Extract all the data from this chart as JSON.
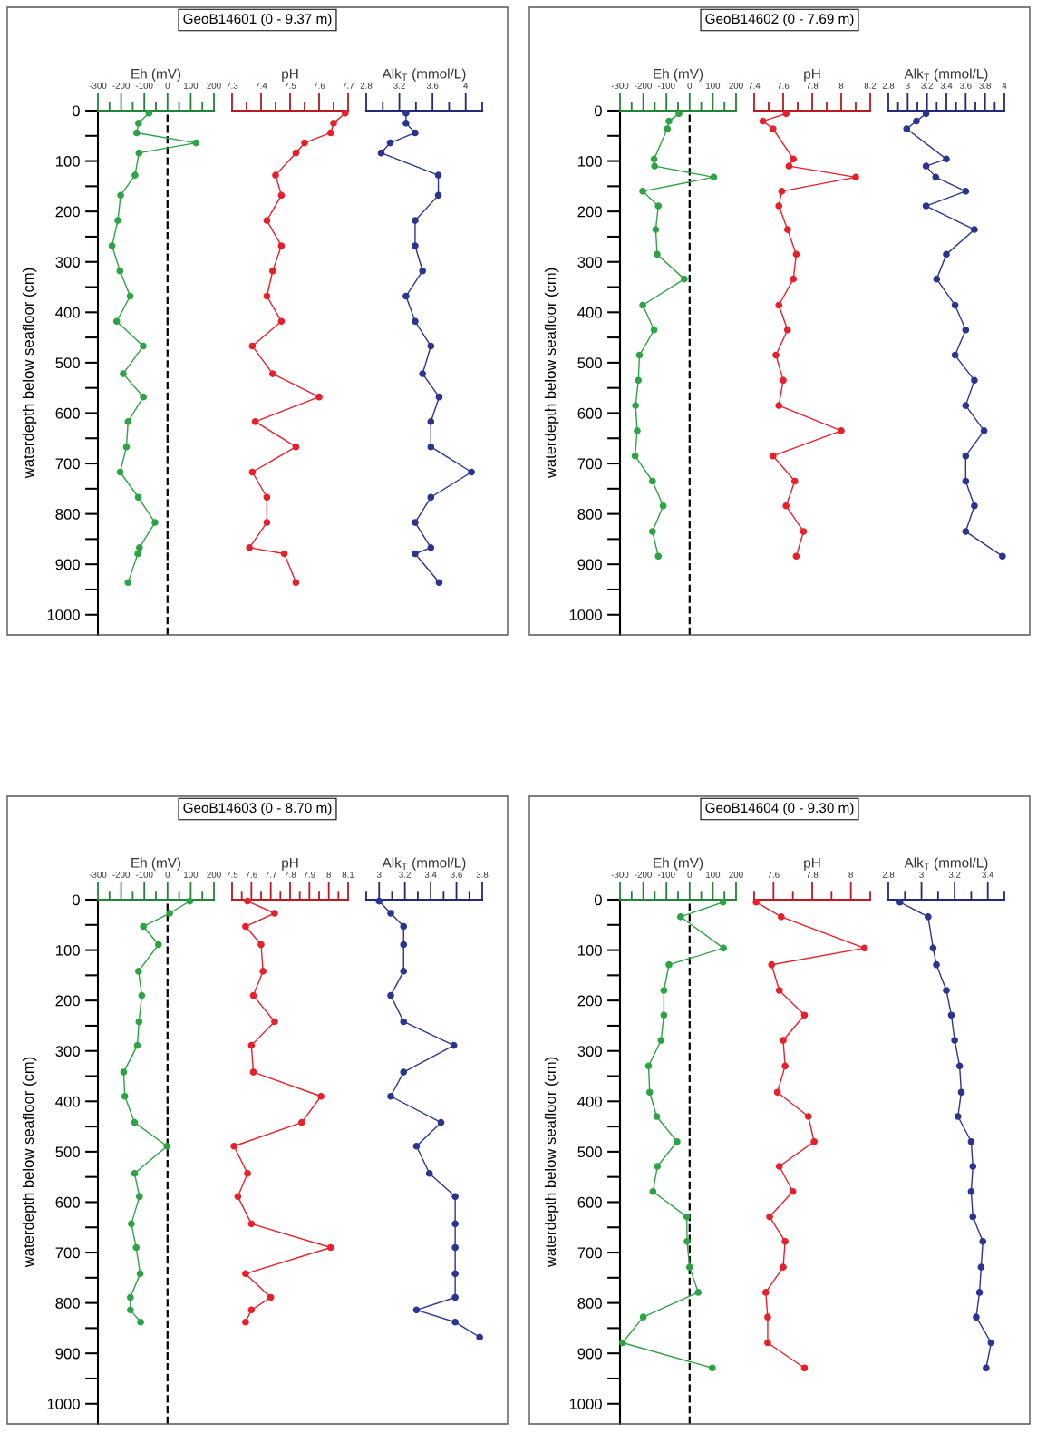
{
  "chart_data": [
    {
      "type": "line",
      "title": "GeoB14601 (0 - 9.37 m)",
      "xlabel": "Eh (mV)",
      "ylabel": "waterdepth below seafloor (cm)",
      "color": "#2ca444",
      "marker": "circle",
      "line_style": "solid",
      "ref_lines": [
        {
          "axis": "x",
          "value": 0,
          "color": "#000000",
          "line_style": "dashed"
        }
      ],
      "x": [
        -80,
        -125,
        -133,
        123,
        -123,
        -140,
        -202,
        -214,
        -239,
        -205,
        -161,
        -219,
        -105,
        -191,
        -104,
        -170,
        -177,
        -204,
        -126,
        -54,
        -121,
        -128,
        -170
      ],
      "values": [
        5,
        25,
        44,
        64,
        84,
        128,
        168,
        218,
        268,
        318,
        368,
        418,
        467,
        522,
        568,
        617,
        667,
        717,
        767,
        817,
        867,
        879,
        936
      ],
      "xlim": [
        -300,
        200
      ],
      "xticks": [
        -300,
        {
          "value": -250,
          "label": null
        },
        -200,
        {
          "value": -150,
          "label": null
        },
        -100,
        {
          "value": -50,
          "label": null
        },
        0,
        {
          "value": 50,
          "label": null
        },
        100,
        {
          "value": 150,
          "label": null
        },
        200
      ],
      "ylim": [
        1040,
        0
      ],
      "yticks": [
        0,
        {
          "value": 50,
          "label": null
        },
        100,
        {
          "value": 150,
          "label": null
        },
        200,
        {
          "value": 250,
          "label": null
        },
        300,
        {
          "value": 350,
          "label": null
        },
        400,
        {
          "value": 450,
          "label": null
        },
        500,
        {
          "value": 550,
          "label": null
        },
        600,
        {
          "value": 650,
          "label": null
        },
        700,
        {
          "value": 750,
          "label": null
        },
        800,
        {
          "value": 850,
          "label": null
        },
        900,
        {
          "value": 950,
          "label": null
        },
        1000
      ]
    },
    {
      "type": "line",
      "xlabel": "pH",
      "color": "#e8202a",
      "marker": "circle",
      "line_style": "solid",
      "tick_labels": "x",
      "x": [
        7.69,
        7.65,
        7.64,
        7.55,
        7.52,
        7.45,
        7.47,
        7.42,
        7.47,
        7.44,
        7.42,
        7.47,
        7.37,
        7.44,
        7.6,
        7.38,
        7.52,
        7.37,
        7.42,
        7.42,
        7.36,
        7.48,
        7.52
      ],
      "values": [
        5,
        25,
        44,
        64,
        84,
        128,
        168,
        218,
        268,
        318,
        368,
        418,
        467,
        522,
        568,
        617,
        667,
        717,
        767,
        817,
        867,
        879,
        936
      ],
      "xlim": [
        7.3,
        7.7
      ],
      "xticks": [
        7.3,
        {
          "value": 7.35,
          "label": null
        },
        7.4,
        {
          "value": 7.45,
          "label": null
        },
        7.5,
        {
          "value": 7.55,
          "label": null
        },
        7.6,
        {
          "value": 7.65,
          "label": null
        },
        7.7
      ],
      "ylim": [
        1040,
        0
      ]
    },
    {
      "type": "line",
      "xlabel": "Alk$_{T}$ (mmol/L)",
      "color": "#2b3590",
      "marker": "circle",
      "line_style": "solid",
      "tick_labels": "x",
      "x": [
        3.28,
        3.28,
        3.39,
        3.09,
        2.98,
        3.67,
        3.67,
        3.39,
        3.39,
        3.48,
        3.28,
        3.39,
        3.58,
        3.48,
        3.68,
        3.58,
        3.58,
        4.07,
        3.58,
        3.39,
        3.58,
        3.39,
        3.68
      ],
      "values": [
        5,
        25,
        44,
        64,
        84,
        128,
        168,
        218,
        268,
        318,
        368,
        418,
        467,
        522,
        568,
        617,
        667,
        717,
        767,
        817,
        867,
        879,
        936
      ],
      "xlim": [
        2.8,
        4.2
      ],
      "xticks": [
        2.8,
        {
          "value": 3.0,
          "label": null
        },
        3.2,
        {
          "value": 3.4,
          "label": null
        },
        3.6,
        {
          "value": 3.8,
          "label": null
        },
        4,
        {
          "value": 4.2,
          "label": null
        }
      ],
      "ylim": [
        1040,
        0
      ]
    },
    {
      "type": "line",
      "title": "GeoB14602 (0 - 7.69 m)",
      "xlabel": "Eh (mV)",
      "ylabel": "waterdepth below seafloor (cm)",
      "color": "#2ca444",
      "marker": "circle",
      "line_style": "solid",
      "ref_lines": [
        {
          "axis": "x",
          "value": 0,
          "color": "#000000",
          "line_style": "dashed"
        }
      ],
      "x": [
        -46,
        -89,
        -96,
        -153,
        -151,
        104,
        -202,
        -135,
        -146,
        -140,
        -23,
        -202,
        -153,
        -216,
        -221,
        -233,
        -226,
        -235,
        -160,
        -114,
        -160,
        -135
      ],
      "values": [
        6,
        21,
        36,
        96,
        110,
        132,
        160,
        189,
        236,
        285,
        334,
        386,
        435,
        485,
        535,
        585,
        635,
        685,
        735,
        784,
        835,
        884
      ],
      "xlim": [
        -300,
        200
      ],
      "xticks": [
        -300,
        {
          "value": -250,
          "label": null
        },
        -200,
        {
          "value": -150,
          "label": null
        },
        -100,
        {
          "value": -50,
          "label": null
        },
        0,
        {
          "value": 50,
          "label": null
        },
        100,
        {
          "value": 150,
          "label": null
        },
        200
      ],
      "ylim": [
        1040,
        0
      ],
      "yticks": [
        0,
        {
          "value": 50,
          "label": null
        },
        100,
        {
          "value": 150,
          "label": null
        },
        200,
        {
          "value": 250,
          "label": null
        },
        300,
        {
          "value": 350,
          "label": null
        },
        400,
        {
          "value": 450,
          "label": null
        },
        500,
        {
          "value": 550,
          "label": null
        },
        600,
        {
          "value": 650,
          "label": null
        },
        700,
        {
          "value": 750,
          "label": null
        },
        800,
        {
          "value": 850,
          "label": null
        },
        900,
        {
          "value": 950,
          "label": null
        },
        1000
      ]
    },
    {
      "type": "line",
      "xlabel": "pH",
      "color": "#e8202a",
      "marker": "circle",
      "line_style": "solid",
      "tick_labels": "x",
      "x": [
        7.62,
        7.46,
        7.53,
        7.67,
        7.64,
        8.1,
        7.59,
        7.57,
        7.63,
        7.69,
        7.67,
        7.57,
        7.63,
        7.55,
        7.6,
        7.57,
        8.0,
        7.53,
        7.68,
        7.62,
        7.74,
        7.69
      ],
      "values": [
        6,
        21,
        36,
        96,
        110,
        132,
        160,
        189,
        236,
        285,
        334,
        386,
        435,
        485,
        535,
        585,
        635,
        685,
        735,
        784,
        835,
        884
      ],
      "xlim": [
        7.4,
        8.2
      ],
      "xticks": [
        7.4,
        {
          "value": 7.5,
          "label": null
        },
        7.6,
        {
          "value": 7.7,
          "label": null
        },
        7.8,
        {
          "value": 7.9,
          "label": null
        },
        8,
        {
          "value": 8.1,
          "label": null
        },
        8.2
      ],
      "ylim": [
        1040,
        0
      ]
    },
    {
      "type": "line",
      "xlabel": "Alk$_{T}$ (mmol/L)",
      "color": "#2b3590",
      "marker": "circle",
      "line_style": "solid",
      "tick_labels": "x",
      "x": [
        3.19,
        3.09,
        2.99,
        3.4,
        3.19,
        3.29,
        3.6,
        3.19,
        3.69,
        3.4,
        3.3,
        3.49,
        3.6,
        3.49,
        3.69,
        3.6,
        3.79,
        3.6,
        3.6,
        3.69,
        3.6,
        3.98
      ],
      "values": [
        6,
        21,
        36,
        96,
        110,
        132,
        160,
        189,
        236,
        285,
        334,
        386,
        435,
        485,
        535,
        585,
        635,
        685,
        735,
        784,
        835,
        884
      ],
      "xlim": [
        2.8,
        4.0
      ],
      "xticks": [
        2.8,
        {
          "value": 2.9,
          "label": null
        },
        3,
        {
          "value": 3.1,
          "label": null
        },
        3.2,
        {
          "value": 3.3,
          "label": null
        },
        3.4,
        {
          "value": 3.5,
          "label": null
        },
        3.6,
        {
          "value": 3.7,
          "label": null
        },
        3.8,
        {
          "value": 3.9,
          "label": null
        },
        4
      ],
      "ylim": [
        1040,
        0
      ]
    },
    {
      "type": "line",
      "title": "GeoB14603 (0 - 8.70 m)",
      "xlabel": "Eh (mV)",
      "ylabel": "waterdepth below seafloor (cm)",
      "color": "#2ca444",
      "marker": "circle",
      "line_style": "solid",
      "ref_lines": [
        {
          "axis": "x",
          "value": 0,
          "color": "#000000",
          "line_style": "dashed"
        }
      ],
      "x": [
        96,
        9,
        -104,
        -39,
        -125,
        -111,
        -123,
        -130,
        -189,
        -184,
        -142,
        -2,
        -142,
        -121,
        -156,
        -135,
        -118,
        -160,
        -160,
        -116
      ],
      "values": [
        3,
        27,
        53,
        89,
        142,
        190,
        242,
        289,
        342,
        390,
        442,
        489,
        543,
        589,
        643,
        690,
        742,
        789,
        814,
        838
      ],
      "xlim": [
        -300,
        200
      ],
      "xticks": [
        -300,
        {
          "value": -250,
          "label": null
        },
        -200,
        {
          "value": -150,
          "label": null
        },
        -100,
        {
          "value": -50,
          "label": null
        },
        0,
        {
          "value": 50,
          "label": null
        },
        100,
        {
          "value": 150,
          "label": null
        },
        200
      ],
      "ylim": [
        1040,
        0
      ],
      "yticks": [
        0,
        {
          "value": 50,
          "label": null
        },
        100,
        {
          "value": 150,
          "label": null
        },
        200,
        {
          "value": 250,
          "label": null
        },
        300,
        {
          "value": 350,
          "label": null
        },
        400,
        {
          "value": 450,
          "label": null
        },
        500,
        {
          "value": 550,
          "label": null
        },
        600,
        {
          "value": 650,
          "label": null
        },
        700,
        {
          "value": 750,
          "label": null
        },
        800,
        {
          "value": 850,
          "label": null
        },
        900,
        {
          "value": 950,
          "label": null
        },
        1000
      ]
    },
    {
      "type": "line",
      "xlabel": "pH",
      "color": "#e8202a",
      "marker": "circle",
      "line_style": "solid",
      "tick_labels": "x",
      "x": [
        7.58,
        7.72,
        7.57,
        7.65,
        7.66,
        7.61,
        7.72,
        7.6,
        7.61,
        7.96,
        7.86,
        7.51,
        7.58,
        7.53,
        7.6,
        8.01,
        7.57,
        7.7,
        7.6,
        7.57
      ],
      "values": [
        3,
        27,
        53,
        89,
        142,
        190,
        242,
        289,
        342,
        390,
        442,
        489,
        543,
        589,
        643,
        690,
        742,
        789,
        814,
        838
      ],
      "xlim": [
        7.5,
        8.1
      ],
      "xticks": [
        7.5,
        {
          "value": 7.55,
          "label": null
        },
        7.6,
        {
          "value": 7.65,
          "label": null
        },
        7.7,
        {
          "value": 7.75,
          "label": null
        },
        7.8,
        {
          "value": 7.85,
          "label": null
        },
        7.9,
        {
          "value": 7.95,
          "label": null
        },
        8,
        {
          "value": 8.05,
          "label": null
        },
        8.1
      ],
      "ylim": [
        1040,
        0
      ]
    },
    {
      "type": "line",
      "xlabel": "Alk$_{T}$ (mmol/L)",
      "color": "#2b3590",
      "marker": "circle",
      "line_style": "solid",
      "tick_labels": "x",
      "x": [
        3,
        3.09,
        3.19,
        3.19,
        3.19,
        3.09,
        3.19,
        3.58,
        3.19,
        3.09,
        3.48,
        3.29,
        3.39,
        3.59,
        3.59,
        3.59,
        3.59,
        3.59,
        3.29,
        3.59,
        3.78
      ],
      "values": [
        3,
        27,
        53,
        89,
        142,
        190,
        242,
        289,
        342,
        390,
        442,
        489,
        543,
        589,
        643,
        690,
        742,
        789,
        814,
        838,
        868
      ],
      "xlim": [
        2.9,
        3.8
      ],
      "xticks": [
        {
          "value": 2.9,
          "label": null
        },
        3,
        {
          "value": 3.1,
          "label": null
        },
        3.2,
        {
          "value": 3.3,
          "label": null
        },
        3.4,
        {
          "value": 3.5,
          "label": null
        },
        3.6,
        {
          "value": 3.7,
          "label": null
        },
        3.8
      ],
      "ylim": [
        1040,
        0
      ]
    },
    {
      "type": "line",
      "title": "GeoB14604 (0 - 9.30 m)",
      "xlabel": "Eh (mV)",
      "ylabel": "waterdepth below seafloor (cm)",
      "color": "#2ca444",
      "marker": "circle",
      "line_style": "solid",
      "ref_lines": [
        {
          "axis": "x",
          "value": 0,
          "color": "#000000",
          "line_style": "dashed"
        }
      ],
      "x": [
        144,
        -39,
        146,
        -89,
        -111,
        -111,
        -123,
        -177,
        -172,
        -142,
        -54,
        -139,
        -158,
        -12,
        -11,
        0,
        37,
        -200,
        -289,
        98
      ],
      "values": [
        5,
        34,
        96,
        129,
        180,
        229,
        279,
        330,
        382,
        430,
        480,
        529,
        579,
        629,
        678,
        729,
        779,
        828,
        879,
        929
      ],
      "xlim": [
        -300,
        200
      ],
      "xticks": [
        -300,
        {
          "value": -250,
          "label": null
        },
        -200,
        {
          "value": -150,
          "label": null
        },
        -100,
        {
          "value": -50,
          "label": null
        },
        0,
        {
          "value": 50,
          "label": null
        },
        100,
        {
          "value": 150,
          "label": null
        },
        200
      ],
      "ylim": [
        1040,
        0
      ],
      "yticks": [
        0,
        {
          "value": 50,
          "label": null
        },
        100,
        {
          "value": 150,
          "label": null
        },
        200,
        {
          "value": 250,
          "label": null
        },
        300,
        {
          "value": 350,
          "label": null
        },
        400,
        {
          "value": 450,
          "label": null
        },
        500,
        {
          "value": 550,
          "label": null
        },
        600,
        {
          "value": 650,
          "label": null
        },
        700,
        {
          "value": 750,
          "label": null
        },
        800,
        {
          "value": 850,
          "label": null
        },
        900,
        {
          "value": 950,
          "label": null
        },
        1000
      ]
    },
    {
      "type": "line",
      "xlabel": "pH",
      "color": "#e8202a",
      "marker": "circle",
      "line_style": "solid",
      "tick_labels": "x",
      "x": [
        7.51,
        7.64,
        8.07,
        7.59,
        7.63,
        7.76,
        7.65,
        7.66,
        7.62,
        7.78,
        7.81,
        7.63,
        7.7,
        7.58,
        7.66,
        7.65,
        7.56,
        7.57,
        7.57,
        7.76
      ],
      "values": [
        5,
        34,
        96,
        129,
        180,
        229,
        279,
        330,
        382,
        430,
        480,
        529,
        579,
        629,
        678,
        729,
        779,
        828,
        879,
        929
      ],
      "xlim": [
        7.5,
        8.1
      ],
      "xticks": [
        {
          "value": 7.5,
          "label": null
        },
        7.6,
        {
          "value": 7.7,
          "label": null
        },
        7.8,
        {
          "value": 7.9,
          "label": null
        },
        8,
        {
          "value": 8.1,
          "label": null
        }
      ],
      "ylim": [
        1040,
        0
      ]
    },
    {
      "type": "line",
      "xlabel": "Alk$_{T}$ (mmol/L)",
      "color": "#2b3590",
      "marker": "circle",
      "line_style": "solid",
      "tick_labels": "x",
      "x": [
        2.87,
        3.04,
        3.07,
        3.09,
        3.15,
        3.18,
        3.2,
        3.23,
        3.24,
        3.22,
        3.3,
        3.31,
        3.3,
        3.31,
        3.37,
        3.36,
        3.35,
        3.33,
        3.42,
        3.39
      ],
      "values": [
        5,
        34,
        96,
        129,
        180,
        229,
        279,
        330,
        382,
        430,
        480,
        529,
        579,
        629,
        678,
        729,
        779,
        828,
        879,
        929
      ],
      "xlim": [
        2.8,
        3.5
      ],
      "xticks": [
        2.8,
        {
          "value": 2.9,
          "label": null
        },
        3,
        {
          "value": 3.1,
          "label": null
        },
        3.2,
        {
          "value": 3.3,
          "label": null
        },
        3.4,
        {
          "value": 3.5,
          "label": null
        }
      ],
      "ylim": [
        1040,
        0
      ]
    }
  ]
}
